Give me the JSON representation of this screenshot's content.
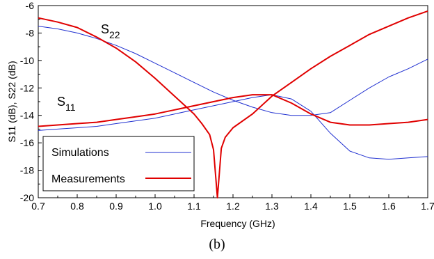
{
  "caption": "(b)",
  "chart_data": {
    "type": "line",
    "xlabel": "Frequency (GHz)",
    "ylabel": "S11 (dB), S22 (dB)",
    "xlim": [
      0.7,
      1.7
    ],
    "ylim": [
      -20,
      -6
    ],
    "xticks": [
      "0.7",
      "0.8",
      "0.9",
      "1.0",
      "1.1",
      "1.2",
      "1.3",
      "1.4",
      "1.5",
      "1.6",
      "1.7"
    ],
    "yticks": [
      "-6",
      "-8",
      "-10",
      "-12",
      "-14",
      "-16",
      "-18",
      "-20"
    ],
    "grid": false,
    "legend_position": "bottom-left",
    "annotations": {
      "s22": {
        "base": "S",
        "sub": "22"
      },
      "s11": {
        "base": "S",
        "sub": "11"
      }
    },
    "series": [
      {
        "name": "Simulations",
        "trace": "S22",
        "color": "#1f2fd0",
        "x": [
          0.7,
          0.75,
          0.8,
          0.85,
          0.9,
          0.95,
          1.0,
          1.05,
          1.1,
          1.15,
          1.2,
          1.25,
          1.3,
          1.35,
          1.4,
          1.45,
          1.5,
          1.55,
          1.6,
          1.65,
          1.7
        ],
        "y": [
          -7.5,
          -7.7,
          -8.0,
          -8.4,
          -8.9,
          -9.5,
          -10.2,
          -10.9,
          -11.6,
          -12.3,
          -12.9,
          -13.4,
          -13.8,
          -14.0,
          -14.0,
          -13.8,
          -12.9,
          -12.0,
          -11.2,
          -10.6,
          -9.9
        ]
      },
      {
        "name": "Simulations",
        "trace": "S11",
        "color": "#1f2fd0",
        "x": [
          0.7,
          0.75,
          0.8,
          0.85,
          0.9,
          0.95,
          1.0,
          1.05,
          1.1,
          1.15,
          1.2,
          1.25,
          1.3,
          1.35,
          1.4,
          1.45,
          1.5,
          1.55,
          1.6,
          1.65,
          1.7
        ],
        "y": [
          -15.1,
          -15.0,
          -14.9,
          -14.8,
          -14.6,
          -14.4,
          -14.2,
          -13.9,
          -13.6,
          -13.3,
          -13.0,
          -12.7,
          -12.5,
          -12.8,
          -13.7,
          -15.3,
          -16.6,
          -17.1,
          -17.2,
          -17.1,
          -17.0
        ]
      },
      {
        "name": "Measurements",
        "trace": "S22",
        "color": "#e00000",
        "x": [
          0.7,
          0.75,
          0.8,
          0.85,
          0.9,
          0.95,
          1.0,
          1.05,
          1.1,
          1.12,
          1.14,
          1.15,
          1.16,
          1.17,
          1.18,
          1.2,
          1.25,
          1.3,
          1.35,
          1.4,
          1.45,
          1.5,
          1.55,
          1.6,
          1.65,
          1.7
        ],
        "y": [
          -6.9,
          -7.2,
          -7.6,
          -8.3,
          -9.1,
          -10.1,
          -11.3,
          -12.6,
          -13.9,
          -14.6,
          -15.4,
          -16.5,
          -20.0,
          -16.4,
          -15.6,
          -14.9,
          -13.9,
          -12.6,
          -11.6,
          -10.6,
          -9.7,
          -8.9,
          -8.1,
          -7.5,
          -6.9,
          -6.4
        ]
      },
      {
        "name": "Measurements",
        "trace": "S11",
        "color": "#e00000",
        "x": [
          0.7,
          0.75,
          0.8,
          0.85,
          0.9,
          0.95,
          1.0,
          1.05,
          1.1,
          1.15,
          1.2,
          1.25,
          1.3,
          1.35,
          1.4,
          1.45,
          1.5,
          1.55,
          1.6,
          1.65,
          1.7
        ],
        "y": [
          -14.8,
          -14.7,
          -14.6,
          -14.5,
          -14.3,
          -14.1,
          -13.9,
          -13.6,
          -13.3,
          -13.0,
          -12.7,
          -12.5,
          -12.5,
          -13.1,
          -13.9,
          -14.5,
          -14.7,
          -14.7,
          -14.6,
          -14.5,
          -14.3
        ]
      }
    ]
  }
}
